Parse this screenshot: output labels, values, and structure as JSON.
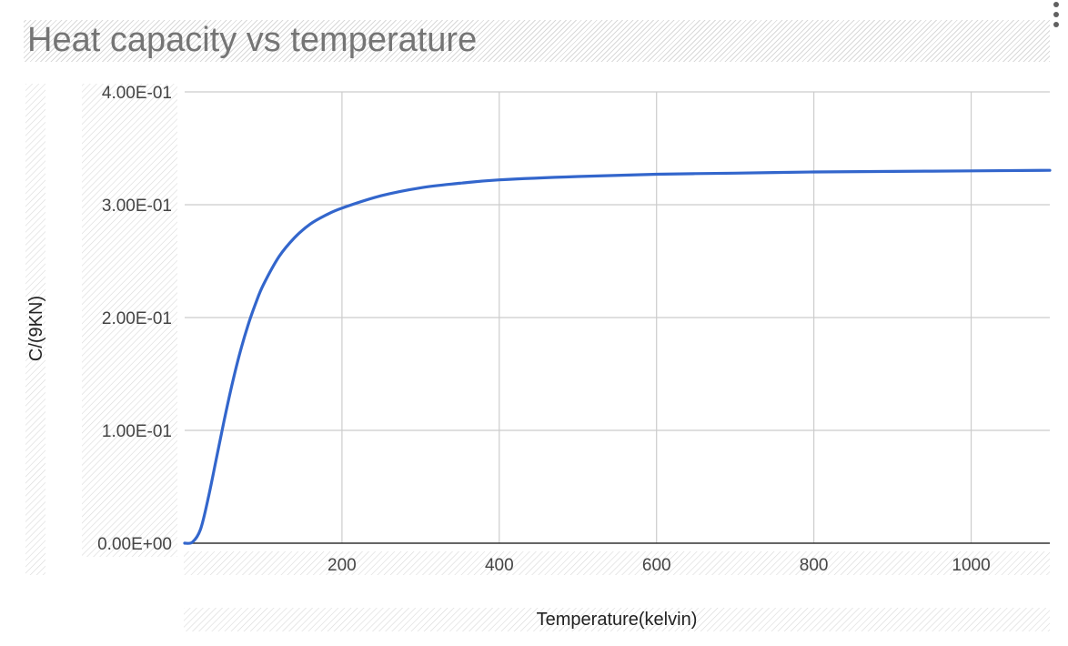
{
  "chart_data": {
    "type": "line",
    "title": "Heat capacity vs temperature",
    "xlabel": "Temperature(kelvin)",
    "ylabel": "C/(9KN)",
    "xlim": [
      0,
      1100
    ],
    "ylim": [
      0,
      0.4
    ],
    "x_ticks": [
      200,
      400,
      600,
      800,
      1000
    ],
    "x_tick_labels": [
      "200",
      "400",
      "600",
      "800",
      "1000"
    ],
    "y_ticks": [
      0,
      0.1,
      0.2,
      0.3,
      0.4
    ],
    "y_tick_labels": [
      "0.00E+00",
      "1.00E-01",
      "2.00E-01",
      "3.00E-01",
      "4.00E-01"
    ],
    "grid": true,
    "legend": "none",
    "series": [
      {
        "name": "C/(9KN)",
        "color": "#3366cc",
        "x": [
          0,
          10,
          20,
          30,
          40,
          50,
          60,
          70,
          80,
          90,
          100,
          120,
          140,
          160,
          180,
          200,
          250,
          300,
          350,
          400,
          500,
          600,
          700,
          800,
          900,
          1000,
          1100
        ],
        "values": [
          0.0,
          0.001,
          0.012,
          0.04,
          0.074,
          0.108,
          0.14,
          0.168,
          0.192,
          0.212,
          0.229,
          0.254,
          0.271,
          0.283,
          0.291,
          0.297,
          0.308,
          0.315,
          0.319,
          0.322,
          0.325,
          0.327,
          0.328,
          0.329,
          0.3295,
          0.33,
          0.3305
        ]
      }
    ]
  },
  "menu": {
    "icon": "more-vert-icon"
  }
}
